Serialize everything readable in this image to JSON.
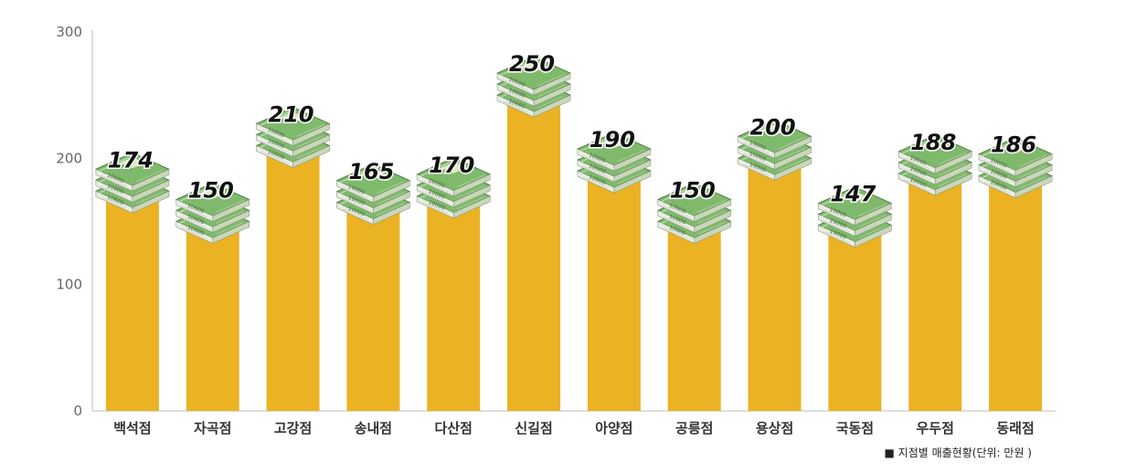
{
  "chart_data": {
    "type": "bar",
    "title": "",
    "xlabel": "",
    "ylabel": "",
    "ylim": [
      0,
      300
    ],
    "yticks": [
      0,
      100,
      200,
      300
    ],
    "grid": false,
    "categories": [
      "백석점",
      "자곡점",
      "고강점",
      "송내점",
      "다산점",
      "신길점",
      "아양점",
      "공릉점",
      "용상점",
      "국동점",
      "우두점",
      "동래점"
    ],
    "values": [
      174,
      150,
      210,
      165,
      170,
      250,
      190,
      150,
      200,
      147,
      188,
      186
    ],
    "legend": "■ 지점별 매출현황(단위: 만원 )",
    "legend_position": "bottom-right",
    "bar_color": "#EBB223",
    "bar_decoration": "money-stack-icon"
  }
}
